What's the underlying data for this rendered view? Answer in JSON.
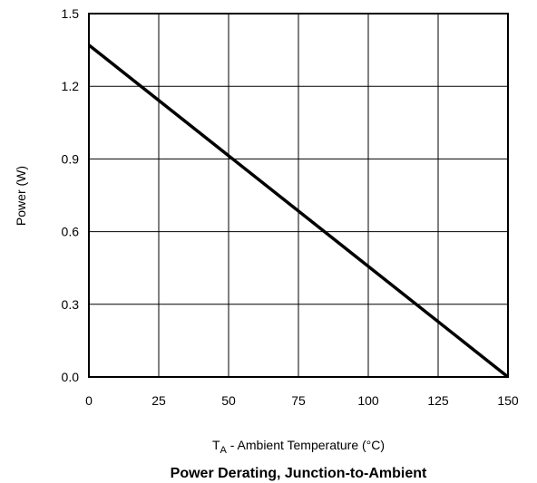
{
  "chart_data": {
    "type": "line",
    "title": "Power Derating, Junction-to-Ambient",
    "xlabel": {
      "main": "T",
      "sub": "A",
      "rest": " - Ambient Temperature (°C)"
    },
    "ylabel": "Power (W)",
    "xlim": [
      0,
      150
    ],
    "ylim": [
      0,
      1.5
    ],
    "x_ticks": [
      0,
      25,
      50,
      75,
      100,
      125,
      150
    ],
    "x_tick_labels": [
      "0",
      "25",
      "50",
      "75",
      "100",
      "125",
      "150"
    ],
    "y_ticks": [
      0,
      0.3,
      0.6,
      0.9,
      1.2,
      1.5
    ],
    "y_tick_labels": [
      "0.0",
      "0.3",
      "0.6",
      "0.9",
      "1.2",
      "1.5"
    ],
    "grid": true,
    "series": [
      {
        "x": [
          0,
          150
        ],
        "y": [
          1.37,
          0
        ]
      }
    ]
  }
}
